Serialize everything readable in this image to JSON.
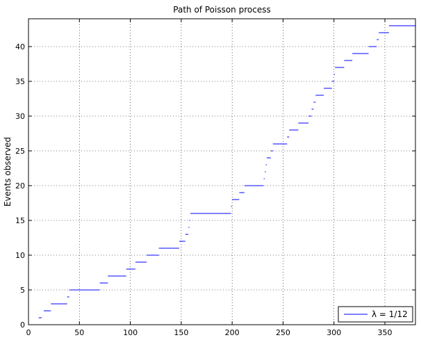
{
  "chart_data": {
    "type": "line",
    "step": true,
    "title": "Path of Poisson process",
    "xlabel": "",
    "ylabel": "Events observed",
    "xlim": [
      0,
      380
    ],
    "ylim": [
      0,
      44
    ],
    "xticks": [
      0,
      50,
      100,
      150,
      200,
      250,
      300,
      350
    ],
    "yticks": [
      0,
      5,
      10,
      15,
      20,
      25,
      30,
      35,
      40
    ],
    "grid": true,
    "legend_position": "bottom-right",
    "series_color": "#0000ff",
    "series": [
      {
        "name": "λ = 1/12",
        "steps": [
          [
            10,
            13,
            1
          ],
          [
            15,
            22,
            2
          ],
          [
            22,
            38,
            3
          ],
          [
            38,
            40,
            4
          ],
          [
            40,
            70,
            5
          ],
          [
            70,
            78,
            6
          ],
          [
            78,
            96,
            7
          ],
          [
            96,
            105,
            8
          ],
          [
            105,
            116,
            9
          ],
          [
            116,
            128,
            10
          ],
          [
            128,
            148,
            11
          ],
          [
            148,
            154,
            12
          ],
          [
            154,
            157,
            13
          ],
          [
            157,
            158,
            14
          ],
          [
            158,
            159,
            15
          ],
          [
            159,
            199,
            16
          ],
          [
            199,
            200,
            17
          ],
          [
            200,
            207,
            18
          ],
          [
            207,
            212,
            19
          ],
          [
            212,
            231,
            20
          ],
          [
            231,
            232,
            21
          ],
          [
            232,
            233,
            22
          ],
          [
            233,
            234,
            23
          ],
          [
            234,
            238,
            24
          ],
          [
            238,
            240,
            25
          ],
          [
            240,
            254,
            26
          ],
          [
            254,
            256,
            27
          ],
          [
            256,
            265,
            28
          ],
          [
            265,
            275,
            29
          ],
          [
            275,
            278,
            30
          ],
          [
            278,
            280,
            31
          ],
          [
            280,
            282,
            32
          ],
          [
            282,
            290,
            33
          ],
          [
            290,
            298,
            34
          ],
          [
            298,
            300,
            35
          ],
          [
            300,
            301,
            36
          ],
          [
            301,
            310,
            37
          ],
          [
            310,
            318,
            38
          ],
          [
            318,
            334,
            39
          ],
          [
            334,
            342,
            40
          ],
          [
            342,
            344,
            41
          ],
          [
            344,
            354,
            42
          ],
          [
            354,
            380,
            43
          ]
        ]
      }
    ]
  }
}
